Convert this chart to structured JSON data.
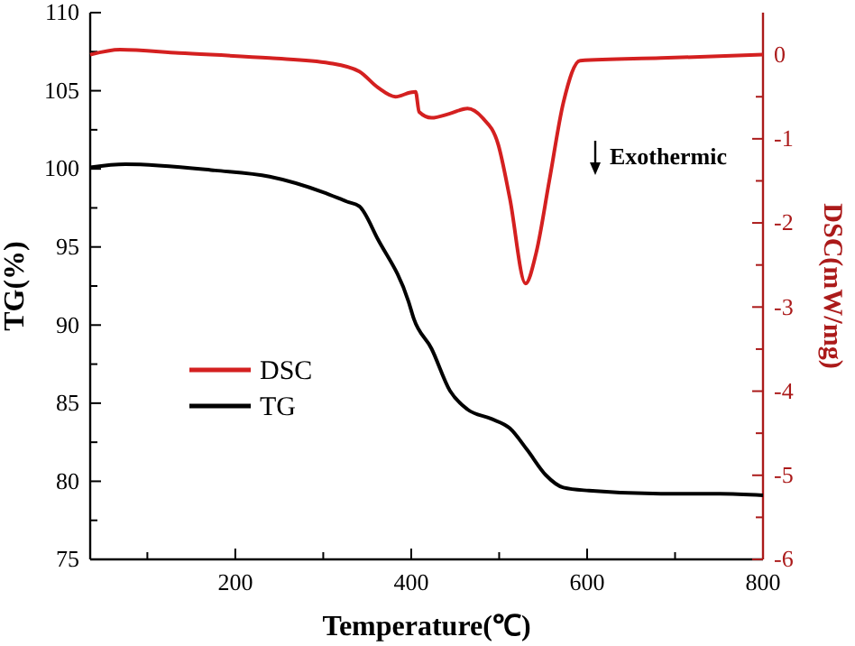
{
  "chart_data": {
    "type": "line",
    "xlabel": "Temperature(℃)",
    "ylabel": "TG(%)",
    "y2label": "DSC(mW/mg)",
    "xlim": [
      35,
      800
    ],
    "xticks": [
      {
        "value": 100,
        "label": null
      },
      200,
      {
        "value": 300,
        "label": null
      },
      400,
      {
        "value": 500,
        "label": null
      },
      600,
      {
        "value": 700,
        "label": null
      },
      800
    ],
    "ylim": [
      75,
      110
    ],
    "yticks": [
      75,
      {
        "value": 77.5,
        "label": null
      },
      80,
      {
        "value": 82.5,
        "label": null
      },
      85,
      {
        "value": 87.5,
        "label": null
      },
      90,
      {
        "value": 92.5,
        "label": null
      },
      95,
      {
        "value": 97.5,
        "label": null
      },
      100,
      {
        "value": 102.5,
        "label": null
      },
      105,
      {
        "value": 107.5,
        "label": null
      },
      110
    ],
    "y2lim": [
      -6,
      0.5
    ],
    "y2ticks": [
      -6,
      {
        "value": -5.5,
        "label": null
      },
      -5,
      {
        "value": -4.5,
        "label": null
      },
      -4,
      {
        "value": -3.5,
        "label": null
      },
      -3,
      {
        "value": -2.5,
        "label": null
      },
      -2,
      {
        "value": -1.5,
        "label": null
      },
      -1,
      {
        "value": -0.5,
        "label": null
      },
      0
    ],
    "legend": "left",
    "grid": false,
    "line_style": "solid",
    "marker": "none",
    "annotations": [
      "Exothermic"
    ],
    "series": [
      {
        "name": "DSC",
        "color": "#d42020",
        "axis": "y2",
        "x": [
          35,
          69,
          136,
          239,
          307,
          341,
          362,
          382,
          399,
          405,
          409,
          423,
          444,
          464,
          481,
          499,
          512,
          530,
          542,
          557,
          573,
          592,
          684,
          800
        ],
        "values": [
          0.0,
          0.06,
          0.02,
          -0.04,
          -0.1,
          -0.2,
          -0.39,
          -0.5,
          -0.45,
          -0.44,
          -0.68,
          -0.75,
          -0.7,
          -0.64,
          -0.75,
          -1.07,
          -1.7,
          -2.72,
          -2.36,
          -1.5,
          -0.57,
          -0.07,
          -0.04,
          0.0
        ]
      },
      {
        "name": "TG",
        "color": "#000000",
        "axis": "y",
        "x": [
          35,
          75,
          177,
          239,
          300,
          327,
          341,
          362,
          397,
          403,
          423,
          444,
          464,
          491,
          512,
          532,
          553,
          573,
          602,
          684,
          751,
          800
        ],
        "values": [
          100.1,
          100.3,
          99.9,
          99.5,
          98.5,
          97.9,
          97.6,
          95.5,
          91.5,
          90.4,
          88.5,
          85.8,
          84.6,
          84.0,
          83.4,
          82.0,
          80.4,
          79.6,
          79.4,
          79.2,
          79.2,
          79.1
        ]
      }
    ]
  }
}
